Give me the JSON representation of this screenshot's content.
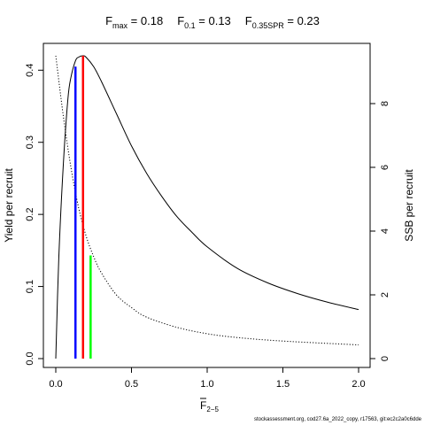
{
  "chart_data": {
    "type": "line",
    "title_parts": {
      "fmax": {
        "main": "F",
        "sub": "max",
        "value": " = 0.18"
      },
      "f01": {
        "main": "F",
        "sub": "0.1",
        "value": " = 0.13"
      },
      "fspr": {
        "main": "F",
        "sub": "0.35SPR",
        "value": " = 0.23"
      }
    },
    "xlabel_main": "F",
    "xlabel_sub": "2−5",
    "ylabel_left": "Yield per recruit",
    "ylabel_right": "SSB per recruit",
    "xlim": [
      0,
      2
    ],
    "ylim_left": [
      0,
      0.42
    ],
    "ylim_right": [
      0,
      9.5
    ],
    "x_ticks": [
      "0.0",
      "0.5",
      "1.0",
      "1.5",
      "2.0"
    ],
    "y_ticks_left": [
      "0.0",
      "0.1",
      "0.2",
      "0.3",
      "0.4"
    ],
    "y_ticks_right": [
      "0",
      "2",
      "4",
      "6",
      "8"
    ],
    "series": [
      {
        "axis": "left",
        "style": "solid",
        "color": "#000000",
        "x": [
          0,
          0.02,
          0.05,
          0.08,
          0.1,
          0.13,
          0.15,
          0.18,
          0.2,
          0.25,
          0.3,
          0.4,
          0.5,
          0.6,
          0.7,
          0.8,
          0.9,
          1.0,
          1.2,
          1.4,
          1.6,
          1.8,
          2.0
        ],
        "y": [
          0,
          0.14,
          0.27,
          0.36,
          0.39,
          0.413,
          0.418,
          0.42,
          0.418,
          0.405,
          0.385,
          0.34,
          0.295,
          0.257,
          0.225,
          0.197,
          0.175,
          0.155,
          0.125,
          0.105,
          0.09,
          0.078,
          0.068
        ]
      },
      {
        "axis": "right",
        "style": "dotted",
        "color": "#000000",
        "x": [
          0,
          0.05,
          0.1,
          0.15,
          0.2,
          0.25,
          0.3,
          0.4,
          0.5,
          0.6,
          0.8,
          1.0,
          1.2,
          1.5,
          2.0
        ],
        "y": [
          9.5,
          7.6,
          6.0,
          4.75,
          3.85,
          3.2,
          2.7,
          2.0,
          1.6,
          1.3,
          0.98,
          0.78,
          0.66,
          0.55,
          0.43
        ]
      }
    ],
    "reference_lines": [
      {
        "name": "F0.1",
        "x": 0.13,
        "y_left": 0.405,
        "color": "#0000ff"
      },
      {
        "name": "Fmax",
        "x": 0.18,
        "y_left": 0.42,
        "color": "#ff0000"
      },
      {
        "name": "F0.35SPR",
        "x": 0.23,
        "y_left": 0.143,
        "color": "#00ff00"
      }
    ],
    "grid": false,
    "legend": "none"
  },
  "footer": "stockassessment.org, cod27.6a_2022_copy, r17563, git:ec2c2a0c6dde"
}
